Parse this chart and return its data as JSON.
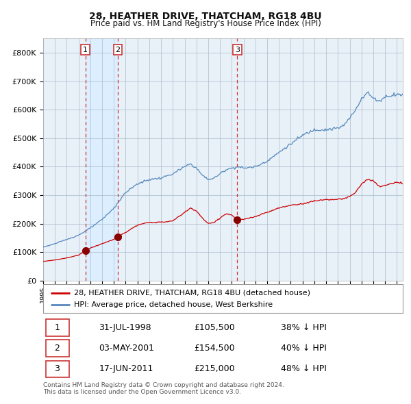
{
  "title": "28, HEATHER DRIVE, THATCHAM, RG18 4BU",
  "subtitle": "Price paid vs. HM Land Registry's House Price Index (HPI)",
  "xlim": [
    1995.0,
    2025.5
  ],
  "ylim": [
    0,
    850000
  ],
  "yticks": [
    0,
    100000,
    200000,
    300000,
    400000,
    500000,
    600000,
    700000,
    800000
  ],
  "ytick_labels": [
    "£0",
    "£100K",
    "£200K",
    "£300K",
    "£400K",
    "£500K",
    "£600K",
    "£700K",
    "£800K"
  ],
  "sale_years": [
    1998.581,
    2001.336,
    2011.463
  ],
  "sale_prices": [
    105500,
    154500,
    215000
  ],
  "sale_labels": [
    "1",
    "2",
    "3"
  ],
  "highlight_spans": [
    [
      1998.581,
      2001.336
    ]
  ],
  "red_line_color": "#cc0000",
  "blue_line_color": "#5588bb",
  "highlight_color": "#ddeeff",
  "vline_color": "#cc3333",
  "dot_color": "#880000",
  "legend_line1": "28, HEATHER DRIVE, THATCHAM, RG18 4BU (detached house)",
  "legend_line2": "HPI: Average price, detached house, West Berkshire",
  "table_data": [
    [
      "1",
      "31-JUL-1998",
      "£105,500",
      "38% ↓ HPI"
    ],
    [
      "2",
      "03-MAY-2001",
      "£154,500",
      "40% ↓ HPI"
    ],
    [
      "3",
      "17-JUN-2011",
      "£215,000",
      "48% ↓ HPI"
    ]
  ],
  "footnote": "Contains HM Land Registry data © Crown copyright and database right 2024.\nThis data is licensed under the Open Government Licence v3.0.",
  "background_color": "#ffffff",
  "plot_bg_color": "#e8f0f8"
}
